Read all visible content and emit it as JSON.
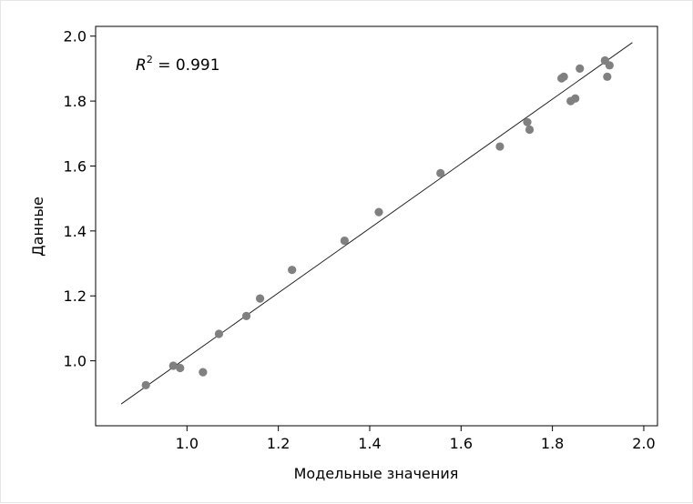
{
  "chart_data": {
    "type": "scatter",
    "title": "",
    "xlabel": "Модельные значения",
    "ylabel": "Данные",
    "xlim": [
      0.8,
      2.03
    ],
    "ylim": [
      0.8,
      2.03
    ],
    "xticks": [
      1.0,
      1.2,
      1.4,
      1.6,
      1.8,
      2.0
    ],
    "yticks": [
      1.0,
      1.2,
      1.4,
      1.6,
      1.8,
      2.0
    ],
    "xtick_labels": [
      "1.0",
      "1.2",
      "1.4",
      "1.6",
      "1.8",
      "2.0"
    ],
    "ytick_labels": [
      "1.0",
      "1.2",
      "1.4",
      "1.6",
      "1.8",
      "2.0"
    ],
    "grid": false,
    "annotation": {
      "r2_symbol": "R",
      "r2_exponent": "2",
      "r2_value": " = 0.991"
    },
    "fit_line": {
      "x": [
        0.856,
        1.975
      ],
      "y": [
        0.867,
        1.98
      ]
    },
    "points": {
      "color": "#808080",
      "x": [
        0.91,
        0.97,
        0.985,
        1.035,
        1.07,
        1.13,
        1.16,
        1.23,
        1.345,
        1.42,
        1.555,
        1.685,
        1.745,
        1.75,
        1.82,
        1.825,
        1.84,
        1.85,
        1.86,
        1.915,
        1.92,
        1.925
      ],
      "y": [
        0.925,
        0.985,
        0.978,
        0.965,
        1.083,
        1.138,
        1.192,
        1.28,
        1.37,
        1.458,
        1.578,
        1.66,
        1.735,
        1.712,
        1.87,
        1.875,
        1.8,
        1.808,
        1.9,
        1.925,
        1.875,
        1.91
      ]
    }
  }
}
